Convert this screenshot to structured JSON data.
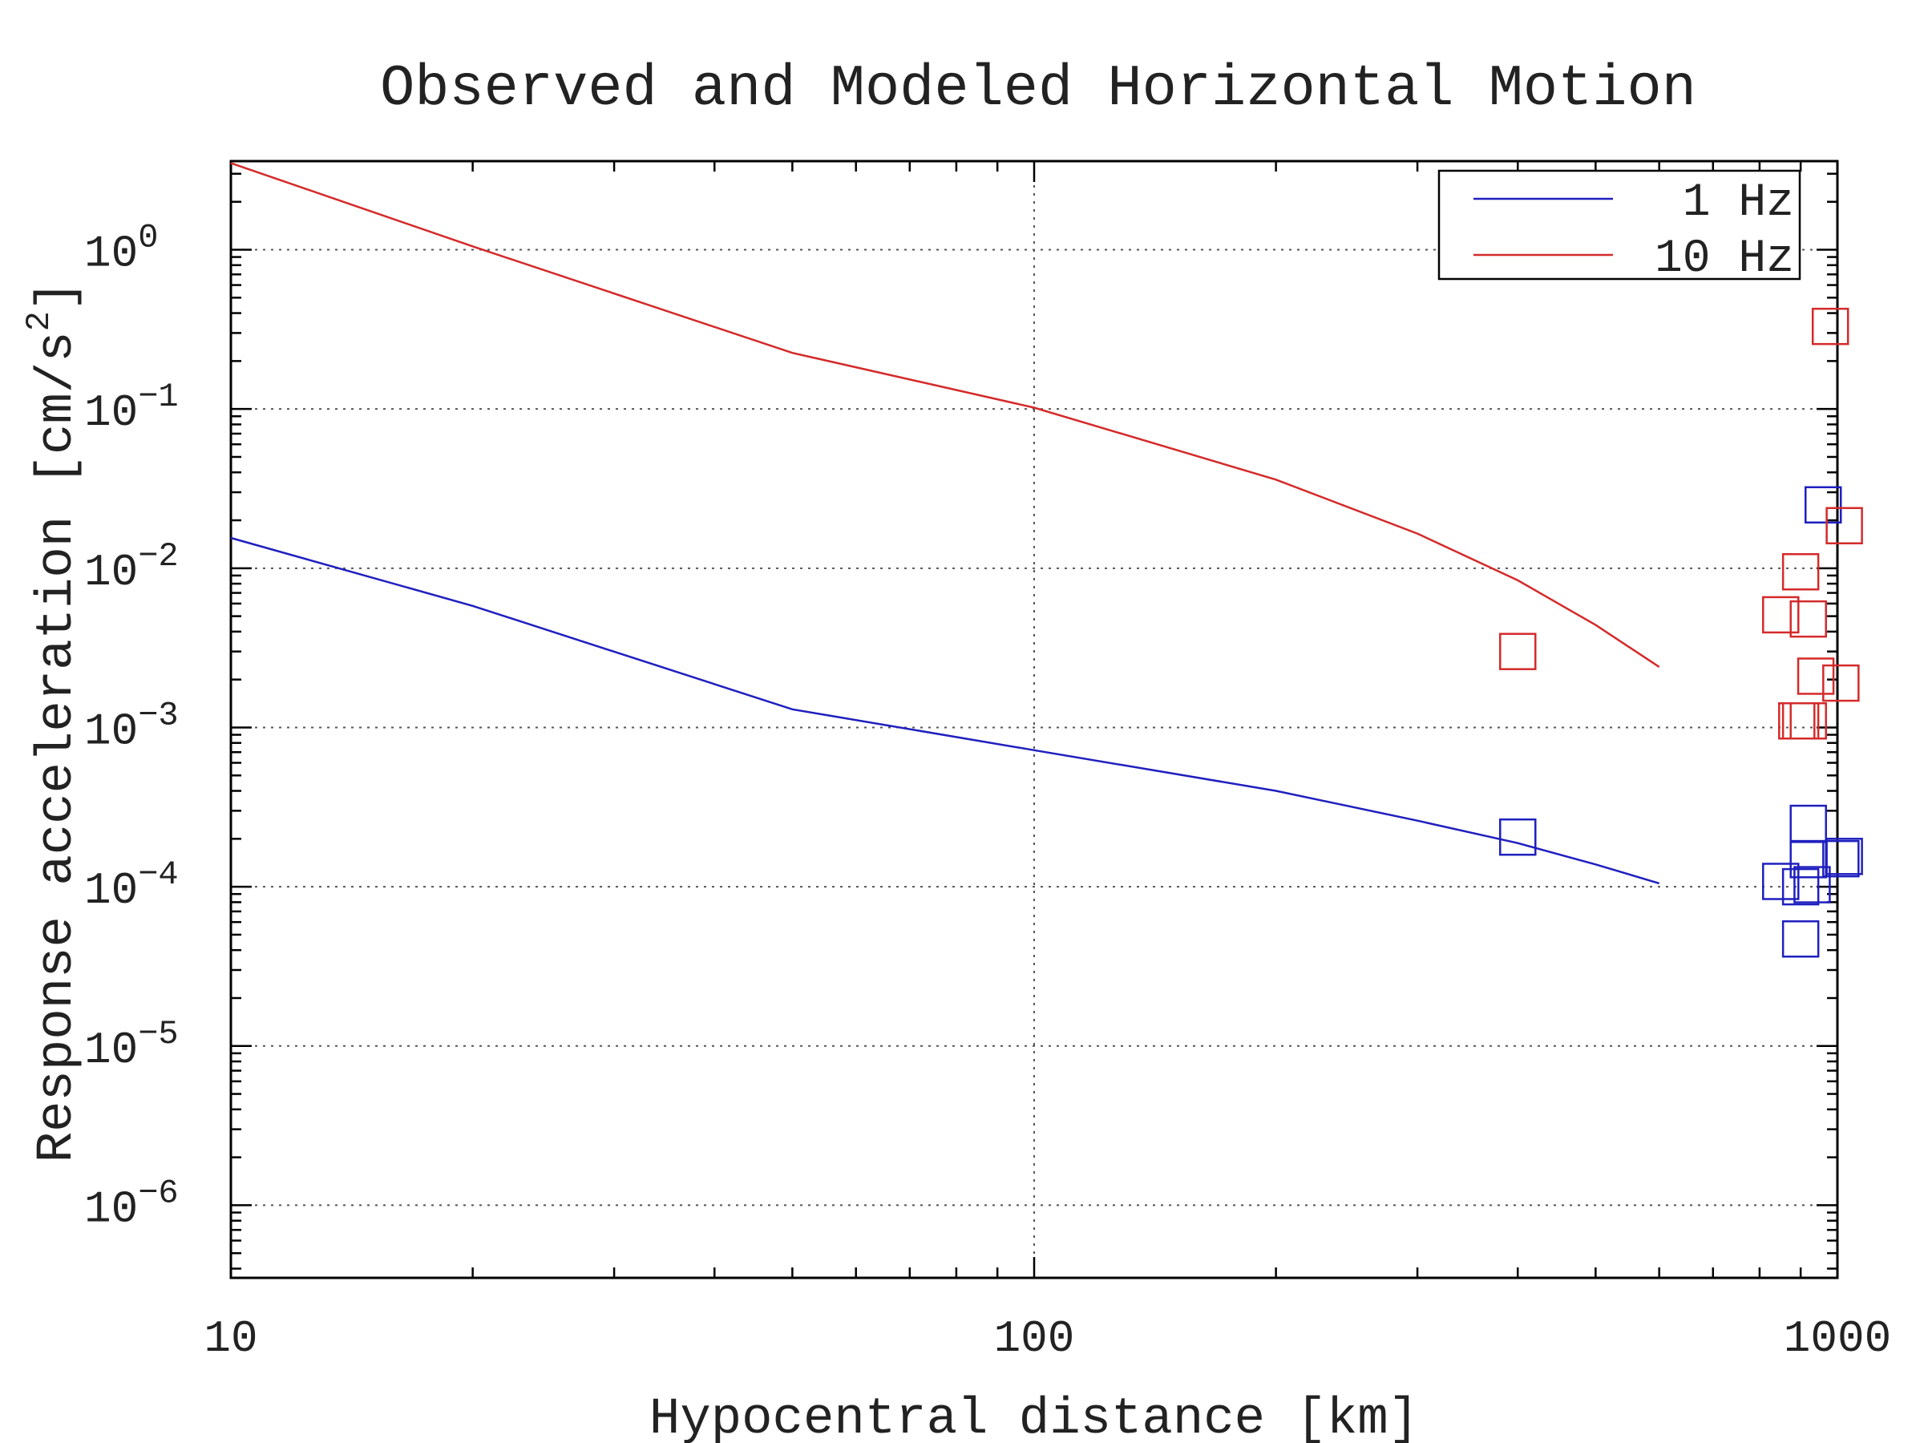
{
  "chart_data": {
    "type": "line",
    "title": "Observed and Modeled Horizontal Motion",
    "xlabel": "Hypocentral distance [km]",
    "ylabel_base": "Response acceleration [cm/s",
    "ylabel_sup": "2",
    "ylabel_tail": "]",
    "xscale": "log",
    "yscale": "log",
    "xlim": [
      10,
      1000
    ],
    "ylim": [
      3.5e-07,
      3.6
    ],
    "x_ticks": [
      {
        "value": 10,
        "label": "10"
      },
      {
        "value": 100,
        "label": "100"
      },
      {
        "value": 1000,
        "label": "1000"
      }
    ],
    "y_ticks": [
      {
        "exp": 0,
        "base": "10",
        "sup": "0"
      },
      {
        "exp": -1,
        "base": "10",
        "sup": "−1"
      },
      {
        "exp": -2,
        "base": "10",
        "sup": "−2"
      },
      {
        "exp": -3,
        "base": "10",
        "sup": "−3"
      },
      {
        "exp": -4,
        "base": "10",
        "sup": "−4"
      },
      {
        "exp": -5,
        "base": "10",
        "sup": "−5"
      },
      {
        "exp": -6,
        "base": "10",
        "sup": "−6"
      }
    ],
    "grid": true,
    "legend_position": "top-right",
    "series": [
      {
        "name": "1 Hz",
        "color": "#1f1fbf",
        "line": {
          "x": [
            10,
            20,
            50,
            100,
            200,
            300,
            400,
            500,
            600
          ],
          "y": [
            0.0155,
            0.0058,
            0.0013,
            0.00072,
            0.0004,
            0.00026,
            0.000188,
            0.000138,
            0.000105
          ]
        },
        "observed": {
          "x": [
            400,
            850,
            900,
            900,
            920,
            920,
            930,
            960,
            1010,
            1020
          ],
          "y": [
            0.000205,
            0.000108,
            4.7e-05,
            0.0001,
            0.00025,
            0.000148,
            0.000103,
            0.025,
            0.00015,
            0.000155
          ]
        }
      },
      {
        "name": "10 Hz",
        "color": "#d42a2a",
        "line": {
          "x": [
            10,
            20,
            50,
            100,
            200,
            300,
            400,
            500,
            600
          ],
          "y": [
            3.5,
            1.05,
            0.225,
            0.102,
            0.036,
            0.0165,
            0.0084,
            0.0044,
            0.0024
          ]
        },
        "observed": {
          "x": [
            400,
            850,
            890,
            900,
            900,
            920,
            920,
            940,
            980,
            1010,
            1020
          ],
          "y": [
            0.003,
            0.0051,
            0.0011,
            0.0011,
            0.0095,
            0.0048,
            0.0011,
            0.0021,
            0.33,
            0.0019,
            0.0185
          ]
        }
      }
    ]
  }
}
